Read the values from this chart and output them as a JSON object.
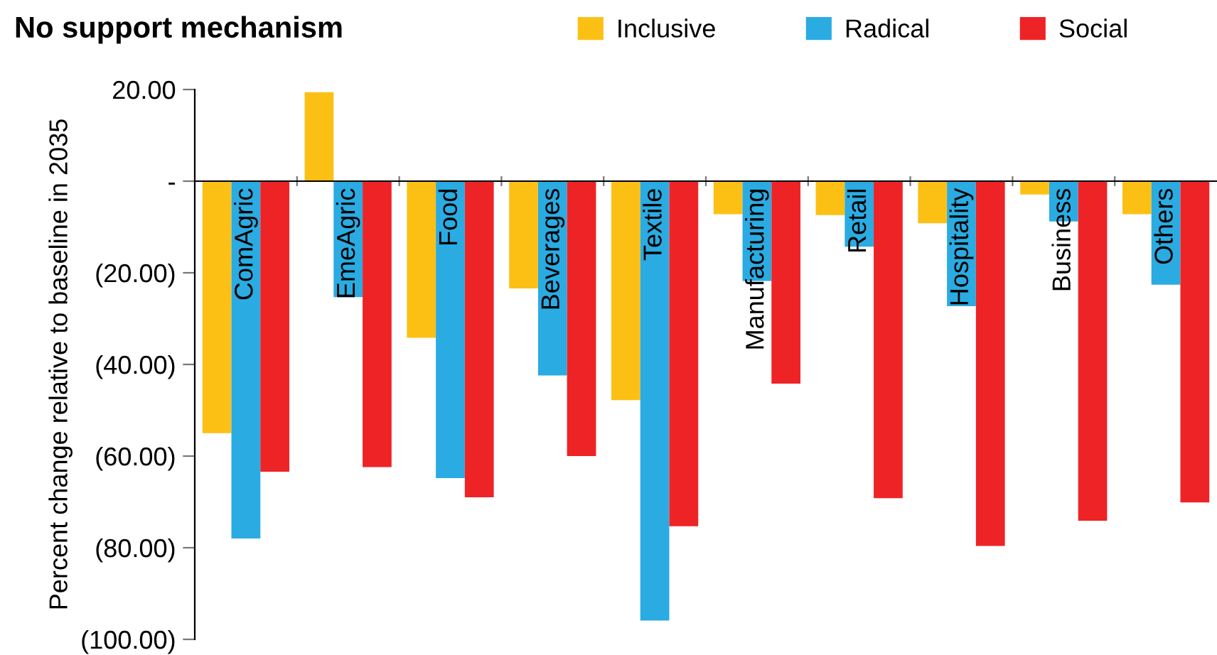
{
  "chart_data": {
    "type": "bar",
    "title": "No support mechanism",
    "ylabel": "Percent change relative to baseline in 2035",
    "categories": [
      "ComAgric",
      "EmeAgric",
      "Food",
      "Beverages",
      "Textile",
      "Manufacturing",
      "Retail",
      "Hospitality",
      "Business",
      "Others"
    ],
    "series": [
      {
        "name": "Inclusive",
        "color": "#fcc015",
        "values": [
          -55.0,
          19.4,
          -34.2,
          -23.4,
          -47.8,
          -7.2,
          -7.4,
          -9.2,
          -2.9,
          -7.2
        ]
      },
      {
        "name": "Radical",
        "color": "#2aabe2",
        "values": [
          -78.0,
          -25.3,
          -64.8,
          -42.4,
          -95.9,
          -21.8,
          -14.3,
          -27.3,
          -8.8,
          -22.6
        ]
      },
      {
        "name": "Social",
        "color": "#ee2326",
        "values": [
          -63.4,
          -62.4,
          -69.0,
          -60.0,
          -75.3,
          -44.2,
          -69.2,
          -79.6,
          -74.1,
          -70.1
        ]
      }
    ],
    "ylim": [
      -100,
      20
    ],
    "yticks": [
      {
        "value": 20,
        "label": "20.00"
      },
      {
        "value": 0,
        "label": "-"
      },
      {
        "value": -20,
        "label": "(20.00)"
      },
      {
        "value": -40,
        "label": "(40.00)"
      },
      {
        "value": -60,
        "label": "(60.00)"
      },
      {
        "value": -80,
        "label": "(80.00)"
      },
      {
        "value": -100,
        "label": "(100.00)"
      }
    ],
    "grid": false,
    "legend": "top"
  }
}
